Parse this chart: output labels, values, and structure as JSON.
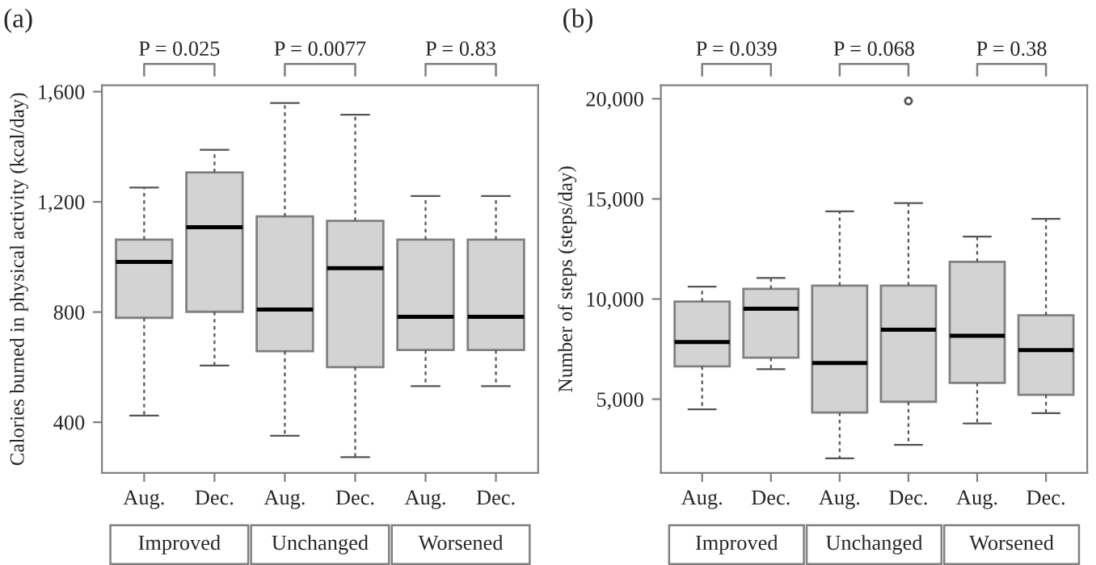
{
  "chart_data": [
    {
      "type": "box",
      "title": "(a)",
      "ylabel": "Calories burned in physical activity (kcal/day)",
      "categories": [
        "Aug.",
        "Dec.",
        "Aug.",
        "Dec.",
        "Aug.",
        "Dec."
      ],
      "boxes": [
        {
          "low": 424,
          "q1": 779,
          "median": 982,
          "q3": 1063,
          "high": 1252
        },
        {
          "low": 606,
          "q1": 801,
          "median": 1108,
          "q3": 1307,
          "high": 1389
        },
        {
          "low": 351,
          "q1": 658,
          "median": 809,
          "q3": 1147,
          "high": 1559
        },
        {
          "low": 273,
          "q1": 600,
          "median": 959,
          "q3": 1131,
          "high": 1516
        },
        {
          "low": 531,
          "q1": 662,
          "median": 783,
          "q3": 1063,
          "high": 1221
        },
        {
          "low": 531,
          "q1": 662,
          "median": 783,
          "q3": 1063,
          "high": 1221
        }
      ],
      "color": "#d3d3d3",
      "ylim": [
        216,
        1623
      ],
      "yticks": [
        400,
        800,
        {
          "value": 1200,
          "label": "1,200"
        },
        {
          "value": 1600,
          "label": "1,600"
        }
      ],
      "grid": false,
      "annotations": [
        "P = 0.025",
        "P = 0.0077",
        "P = 0.83",
        "Improved",
        "Unchanged",
        "Worsened"
      ]
    },
    {
      "type": "box",
      "title": "(b)",
      "ylabel": "Number of steps (steps/day)",
      "categories": [
        "Aug.",
        "Dec.",
        "Aug.",
        "Dec.",
        "Aug.",
        "Dec."
      ],
      "boxes": [
        {
          "low": 4490,
          "q1": 6640,
          "median": 7850,
          "q3": 9870,
          "high": 10620
        },
        {
          "low": 6500,
          "q1": 7070,
          "median": 9520,
          "q3": 10510,
          "high": 11050
        },
        {
          "low": 2040,
          "q1": 4330,
          "median": 6800,
          "q3": 10670,
          "high": 14380
        },
        {
          "low": 2720,
          "q1": 4870,
          "median": 8470,
          "q3": 10670,
          "high": 14790,
          "outliers": [
            19890
          ]
        },
        {
          "low": 3790,
          "q1": 5810,
          "median": 8170,
          "q3": 11860,
          "high": 13120
        },
        {
          "low": 4300,
          "q1": 5220,
          "median": 7450,
          "q3": 9190,
          "high": 14000
        }
      ],
      "color": "#d3d3d3",
      "ylim": [
        1317,
        20672
      ],
      "yticks": [
        {
          "value": 5000,
          "label": "5,000"
        },
        {
          "value": 10000,
          "label": "10,000"
        },
        {
          "value": 15000,
          "label": "15,000"
        },
        {
          "value": 20000,
          "label": "20,000"
        }
      ],
      "grid": false,
      "annotations": [
        "P = 0.039",
        "P = 0.068",
        "P = 0.38",
        "Improved",
        "Unchanged",
        "Worsened"
      ]
    }
  ]
}
